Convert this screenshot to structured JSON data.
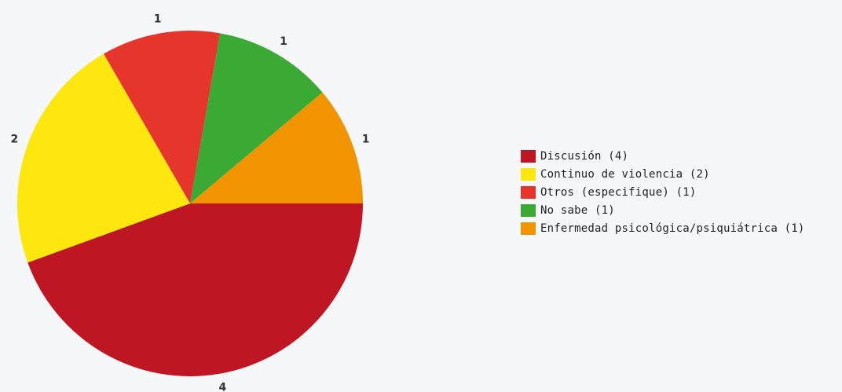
{
  "chart_data": {
    "type": "pie",
    "title": "",
    "slices": [
      {
        "label": "Discusión",
        "value": 4,
        "color": "#be1622",
        "legend": "Discusión (4)"
      },
      {
        "label": "Continuo de violencia",
        "value": 2,
        "color": "#fde70e",
        "legend": "Continuo de violencia (2)"
      },
      {
        "label": "Otros (especifique)",
        "value": 1,
        "color": "#e6362c",
        "legend": "Otros (especifique) (1)"
      },
      {
        "label": "No sabe",
        "value": 1,
        "color": "#3aaa35",
        "legend": "No sabe (1)"
      },
      {
        "label": "Enfermedad psicológica/psiquiátrica",
        "value": 1,
        "color": "#f29400",
        "legend": "Enfermedad psicológica/psiquiátrica (1)"
      }
    ],
    "legend_position": "right"
  }
}
